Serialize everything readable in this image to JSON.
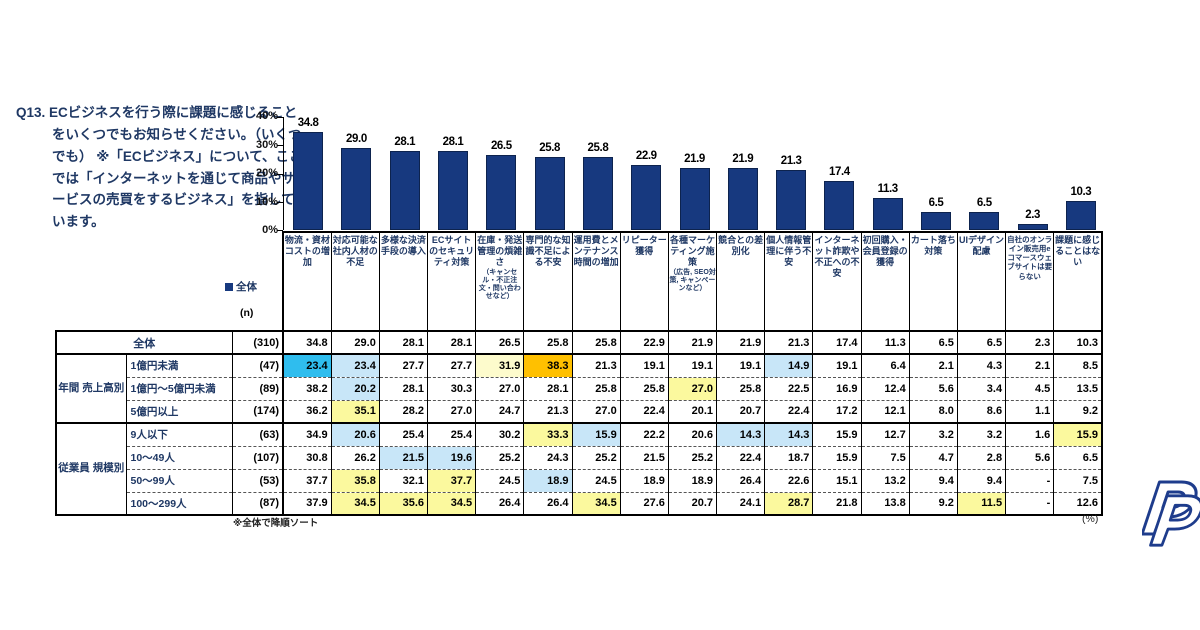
{
  "question": "Q13. ECビジネスを行う際に課題に感じることをいくつでもお知らせください。（いくつでも） ※「ECビジネス」について、ここでは「インターネットを通じて商品やサービスの売買をするビジネス」を指しています。",
  "legend": {
    "label": "全体",
    "n_label": "(n)"
  },
  "notes": {
    "sort": "※全体で降順ソート",
    "unit": "(%)"
  },
  "colors": {
    "navy_text": "#1F3864",
    "bar": "#17397F",
    "highlight_cyan": "#2FBDEE",
    "highlight_blue": "#C8E6F8",
    "highlight_yellow": "#FBF99E",
    "highlight_pale_yellow": "#FDFBCC",
    "highlight_orange": "#FFC000"
  },
  "chart_data": {
    "type": "bar",
    "title": "",
    "xlabel": "",
    "ylabel": "",
    "ylim": [
      0,
      40
    ],
    "yticks": [
      "40%",
      "30%",
      "20%",
      "10%",
      "0%"
    ],
    "grid": false,
    "legend_position": "left-below",
    "legend_entries": [
      "全体"
    ],
    "bar_color": "#17397F",
    "categories": [
      "物流・資材コストの増加",
      "対応可能な社内人材の不足",
      "多様な決済手段の導入",
      "ECサイトのセキュリティ対策",
      "在庫・発送管理の煩雑さ（キャンセル・不正注文・問い合わせなど）",
      "専門的な知識不足による不安",
      "運用費とメンテナンス時間の増加",
      "リピーター獲得",
      "各種マーケティング施策（広告, SEO対策, キャンペーンなど）",
      "競合との差別化",
      "個人情報管理に伴う不安",
      "インターネット詐欺や不正への不安",
      "初回購入・会員登録の獲得",
      "カート落ち対策",
      "UIデザイン配慮",
      "自社のオンライン販売用eコマースウェブサイトは要らない",
      "課題に感じることはない"
    ],
    "values": [
      34.8,
      29.0,
      28.1,
      28.1,
      26.5,
      25.8,
      25.8,
      22.9,
      21.9,
      21.9,
      21.3,
      17.4,
      11.3,
      6.5,
      6.5,
      2.3,
      10.3
    ]
  },
  "table": {
    "columns": [
      {
        "main": "物流・資材コストの増加"
      },
      {
        "main": "対応可能な社内人材の不足"
      },
      {
        "main": "多様な決済手段の導入"
      },
      {
        "main": "ECサイトのセキュリティ対策"
      },
      {
        "main": "在庫・発送管理の煩雑さ",
        "note": "（キャンセル・不正注文・問い合わせなど）"
      },
      {
        "main": "専門的な知識不足による不安"
      },
      {
        "main": "運用費とメンテナンス時間の増加"
      },
      {
        "main": "リピーター獲得"
      },
      {
        "main": "各種マーケティング施策",
        "note": "（広告, SEO対策, キャンペーンなど）"
      },
      {
        "main": "競合との差別化"
      },
      {
        "main": "個人情報管理に伴う不安"
      },
      {
        "main": "インターネット詐欺や不正への不安"
      },
      {
        "main": "初回購入・会員登録の獲得"
      },
      {
        "main": "カート落ち対策"
      },
      {
        "main": "UIデザイン配慮"
      },
      {
        "main": "自社のオンライン販売用eコマースウェブサイトは要らない",
        "small": true
      },
      {
        "main": "課題に感じることはない"
      }
    ],
    "highlight_colors": {
      "cyan": "#2FBDEE",
      "blue": "#C8E6F8",
      "yellow": "#FBF99E",
      "pale": "#FDFBCC",
      "orange": "#FFC000"
    },
    "total": {
      "label": "全体",
      "n": "(310)",
      "values": [
        34.8,
        29.0,
        28.1,
        28.1,
        26.5,
        25.8,
        25.8,
        22.9,
        21.9,
        21.9,
        21.3,
        17.4,
        11.3,
        6.5,
        6.5,
        2.3,
        10.3
      ]
    },
    "groups": [
      {
        "label": "年間 売上高別",
        "rows": [
          {
            "label": "1億円未満",
            "n": "(47)",
            "values": [
              23.4,
              23.4,
              27.7,
              27.7,
              31.9,
              38.3,
              21.3,
              19.1,
              19.1,
              19.1,
              14.9,
              19.1,
              6.4,
              2.1,
              4.3,
              2.1,
              8.5
            ],
            "hl": {
              "0": "cyan",
              "1": "blue",
              "4": "pale",
              "5": "orange",
              "10": "blue"
            }
          },
          {
            "label": "1億円～5億円未満",
            "n": "(89)",
            "values": [
              38.2,
              20.2,
              28.1,
              30.3,
              27.0,
              28.1,
              25.8,
              25.8,
              27.0,
              25.8,
              22.5,
              16.9,
              12.4,
              5.6,
              3.4,
              4.5,
              13.5
            ],
            "hl": {
              "1": "blue",
              "8": "yellow"
            }
          },
          {
            "label": "5億円以上",
            "n": "(174)",
            "values": [
              36.2,
              35.1,
              28.2,
              27.0,
              24.7,
              21.3,
              27.0,
              22.4,
              20.1,
              20.7,
              22.4,
              17.2,
              12.1,
              8.0,
              8.6,
              1.1,
              9.2
            ],
            "hl": {
              "1": "yellow"
            }
          }
        ]
      },
      {
        "label": "従業員 規模別",
        "rows": [
          {
            "label": "9人以下",
            "n": "(63)",
            "values": [
              34.9,
              20.6,
              25.4,
              25.4,
              30.2,
              33.3,
              15.9,
              22.2,
              20.6,
              14.3,
              14.3,
              15.9,
              12.7,
              3.2,
              3.2,
              1.6,
              15.9
            ],
            "hl": {
              "1": "blue",
              "5": "yellow",
              "6": "blue",
              "9": "blue",
              "10": "blue",
              "16": "yellow"
            }
          },
          {
            "label": "10～49人",
            "n": "(107)",
            "values": [
              30.8,
              26.2,
              21.5,
              19.6,
              25.2,
              24.3,
              25.2,
              21.5,
              25.2,
              22.4,
              18.7,
              15.9,
              7.5,
              4.7,
              2.8,
              5.6,
              6.5
            ],
            "hl": {
              "2": "blue",
              "3": "blue"
            }
          },
          {
            "label": "50～99人",
            "n": "(53)",
            "values": [
              37.7,
              35.8,
              32.1,
              37.7,
              24.5,
              18.9,
              24.5,
              18.9,
              18.9,
              26.4,
              22.6,
              15.1,
              13.2,
              9.4,
              9.4,
              "-",
              7.5
            ],
            "hl": {
              "1": "yellow",
              "3": "yellow",
              "5": "blue"
            }
          },
          {
            "label": "100～299人",
            "n": "(87)",
            "values": [
              37.9,
              34.5,
              35.6,
              34.5,
              26.4,
              26.4,
              34.5,
              27.6,
              20.7,
              24.1,
              28.7,
              21.8,
              13.8,
              9.2,
              11.5,
              "-",
              12.6
            ],
            "hl": {
              "1": "yellow",
              "2": "yellow",
              "3": "yellow",
              "6": "yellow",
              "10": "yellow",
              "14": "yellow"
            }
          }
        ]
      }
    ]
  }
}
